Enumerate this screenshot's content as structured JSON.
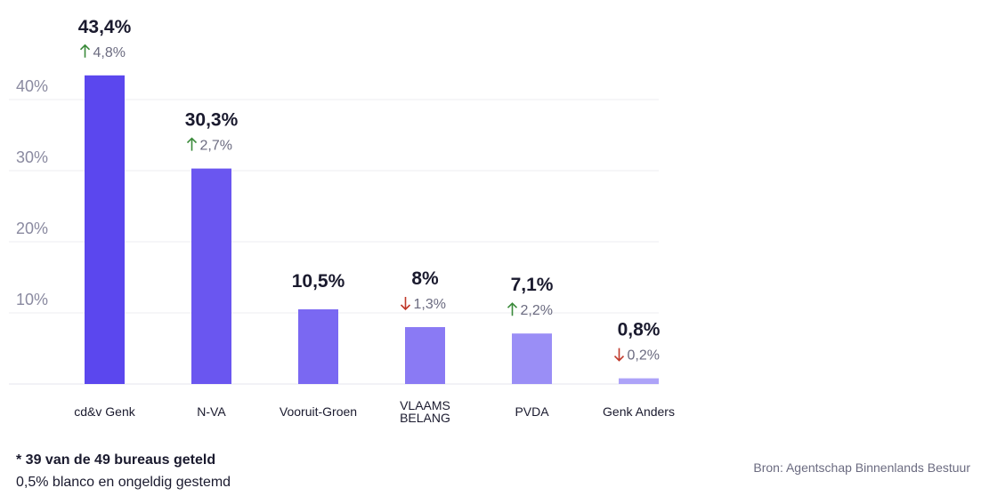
{
  "chart_data": {
    "type": "bar",
    "categories": [
      "cd&v Genk",
      "N-VA",
      "Vooruit-Groen",
      "VLAAMS BELANG",
      "PVDA",
      "Genk Anders"
    ],
    "category_lines": [
      [
        "cd&v Genk"
      ],
      [
        "N-VA"
      ],
      [
        "Vooruit-Groen"
      ],
      [
        "VLAAMS",
        "BELANG"
      ],
      [
        "PVDA"
      ],
      [
        "Genk Anders"
      ]
    ],
    "values": [
      43.4,
      30.3,
      10.5,
      8,
      7.1,
      0.8
    ],
    "value_labels": [
      "43,4%",
      "30,3%",
      "10,5%",
      "8%",
      "7,1%",
      "0,8%"
    ],
    "changes": [
      {
        "direction": "up",
        "label": "4,8%"
      },
      {
        "direction": "up",
        "label": "2,7%"
      },
      null,
      {
        "direction": "down",
        "label": "1,3%"
      },
      {
        "direction": "up",
        "label": "2,2%"
      },
      {
        "direction": "down",
        "label": "0,2%"
      }
    ],
    "yticks": [
      10,
      20,
      30,
      40
    ],
    "ytick_labels": [
      "10%",
      "20%",
      "30%",
      "40%"
    ],
    "ylim": [
      0,
      40
    ],
    "grid": true,
    "colors": [
      "#5b47ee",
      "#6a56f0",
      "#7a68f2",
      "#8a7af4",
      "#9a8ef6",
      "#ada3f8"
    ],
    "up_color": "#3a8a3a",
    "down_color": "#c0392b"
  },
  "footnote": {
    "line1": "* 39 van de 49 bureaus geteld",
    "line2": "0,5% blanco en ongeldig gestemd"
  },
  "source": "Bron: Agentschap Binnenlands Bestuur"
}
